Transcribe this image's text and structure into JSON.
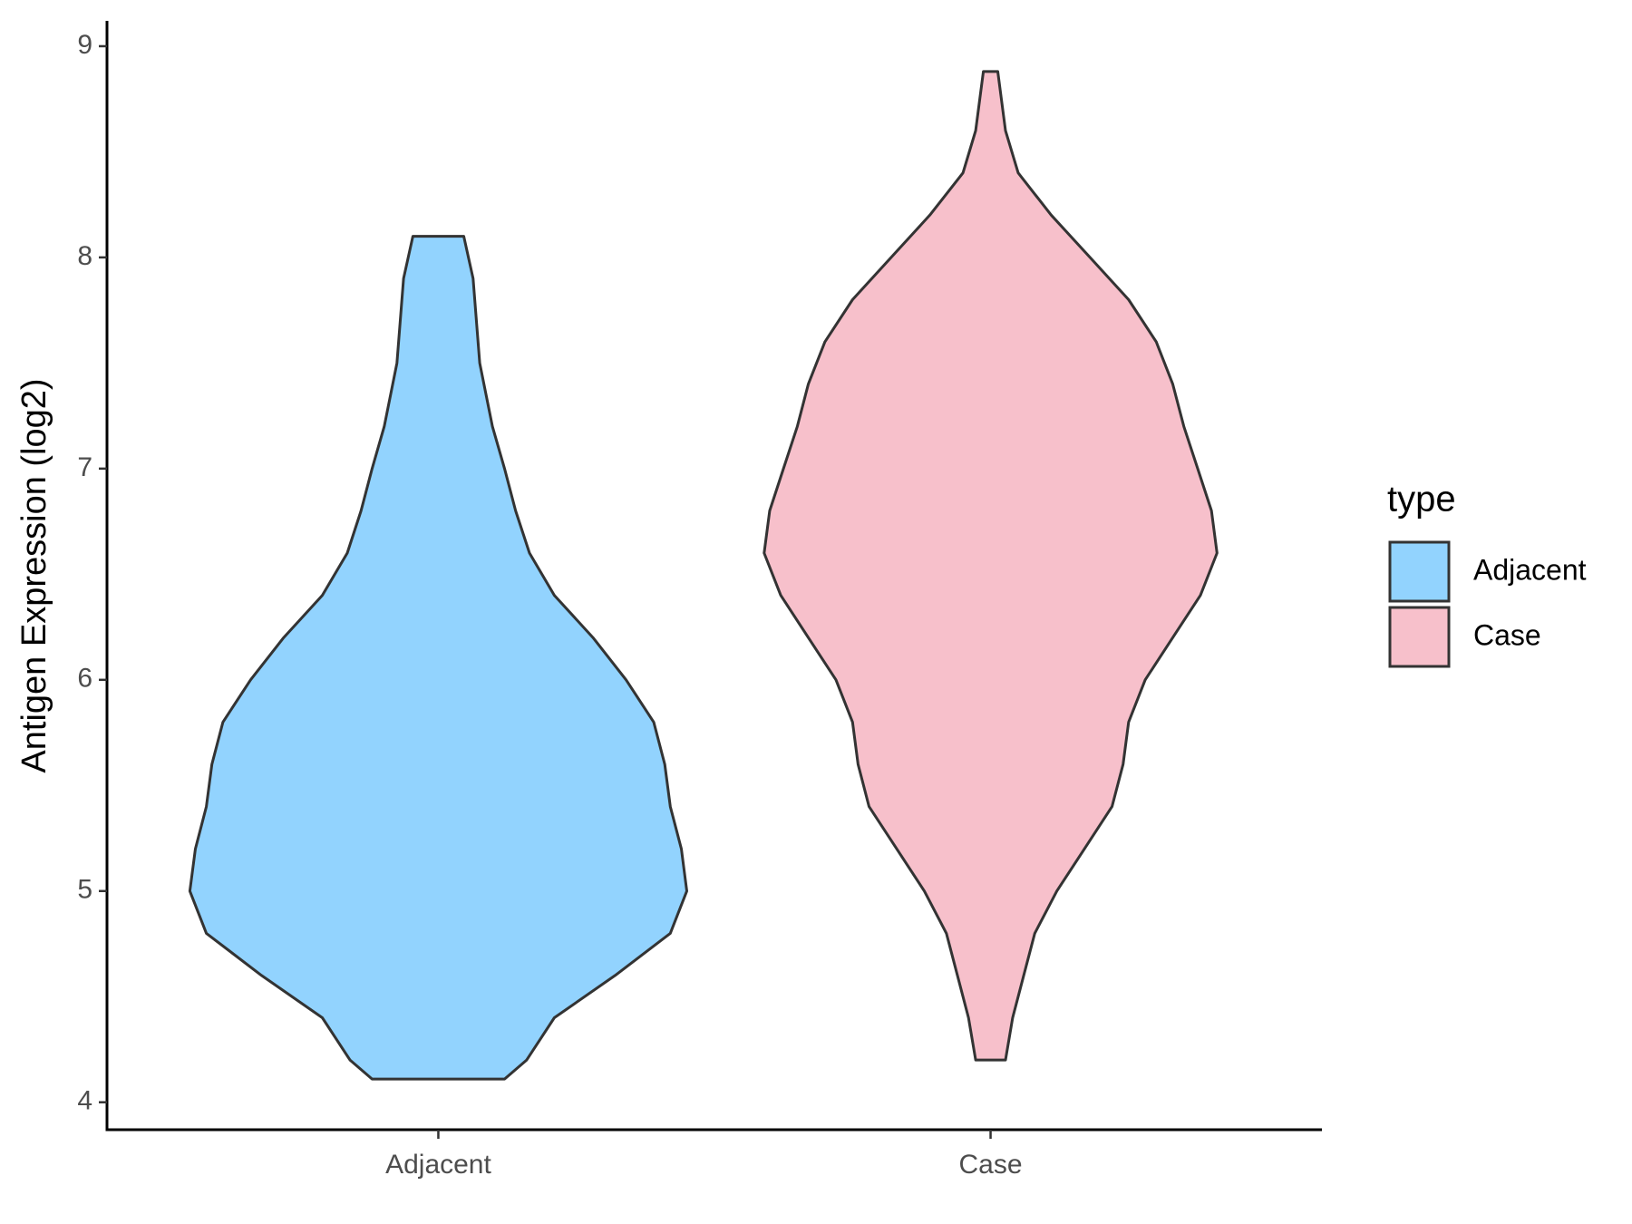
{
  "chart_data": {
    "type": "violin",
    "y_label": "Antigen Expression (log2)",
    "legend_title": "type",
    "categories": [
      "Adjacent",
      "Case"
    ],
    "ylim": [
      3.87,
      9.12
    ],
    "yticks": [
      4,
      5,
      6,
      7,
      8,
      9
    ],
    "series": [
      {
        "name": "Adjacent",
        "color": "#92d3fe",
        "values": [
          8.1,
          7.9,
          7.5,
          7.2,
          7.0,
          6.8,
          6.6,
          6.4,
          6.2,
          6.0,
          5.8,
          5.6,
          5.4,
          5.2,
          5.0,
          4.8,
          4.6,
          4.4,
          4.2,
          4.11
        ],
        "widths": [
          0.046,
          0.063,
          0.075,
          0.098,
          0.12,
          0.14,
          0.165,
          0.21,
          0.28,
          0.34,
          0.39,
          0.41,
          0.42,
          0.44,
          0.45,
          0.42,
          0.32,
          0.21,
          0.16,
          0.12
        ]
      },
      {
        "name": "Case",
        "color": "#f7c0cb",
        "values": [
          8.88,
          8.6,
          8.4,
          8.2,
          8.0,
          7.8,
          7.6,
          7.4,
          7.2,
          7.0,
          6.8,
          6.6,
          6.4,
          6.2,
          6.0,
          5.8,
          5.6,
          5.4,
          5.2,
          5.0,
          4.8,
          4.6,
          4.4,
          4.2
        ],
        "widths": [
          0.013,
          0.027,
          0.05,
          0.11,
          0.18,
          0.25,
          0.3,
          0.33,
          0.35,
          0.375,
          0.4,
          0.41,
          0.38,
          0.33,
          0.28,
          0.25,
          0.24,
          0.22,
          0.17,
          0.12,
          0.08,
          0.06,
          0.04,
          0.027
        ]
      }
    ]
  }
}
